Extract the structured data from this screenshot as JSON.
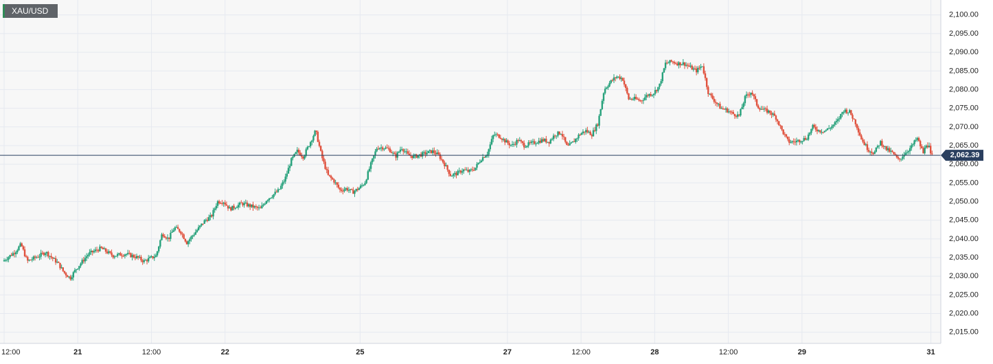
{
  "symbol": "XAU/USD",
  "last_price_label": "2,062.39",
  "colors": {
    "up": "#26a17b",
    "down": "#e0513d",
    "price_line": "#2a3f5f",
    "grid": "#e6e9f0",
    "plot_bg": "#f7f7f7",
    "axis_text": "#222222"
  },
  "chart_data": {
    "type": "candlestick",
    "title": "",
    "xlabel": "",
    "ylabel": "",
    "ylim": [
      2012,
      2104
    ],
    "y_ticks": [
      "2,015.00",
      "2,020.00",
      "2,025.00",
      "2,030.00",
      "2,035.00",
      "2,040.00",
      "2,045.00",
      "2,050.00",
      "2,055.00",
      "2,060.00",
      "2,065.00",
      "2,070.00",
      "2,075.00",
      "2,080.00",
      "2,085.00",
      "2,090.00",
      "2,095.00",
      "2,100.00"
    ],
    "x_ticks": [
      {
        "label": "12:00",
        "t": 0,
        "bold": false
      },
      {
        "label": "21",
        "t": 12,
        "bold": true
      },
      {
        "label": "12:00",
        "t": 24,
        "bold": false
      },
      {
        "label": "22",
        "t": 36,
        "bold": true
      },
      {
        "label": "25",
        "t": 58,
        "bold": true
      },
      {
        "label": "27",
        "t": 82,
        "bold": true
      },
      {
        "label": "12:00",
        "t": 94,
        "bold": false
      },
      {
        "label": "28",
        "t": 106,
        "bold": true
      },
      {
        "label": "12:00",
        "t": 118,
        "bold": false
      },
      {
        "label": "29",
        "t": 130,
        "bold": true
      },
      {
        "label": "31",
        "t": 151,
        "bold": true
      }
    ],
    "x_range": [
      0,
      151.5
    ],
    "last_price": 2062.39,
    "price_path": [
      [
        0,
        2034.0
      ],
      [
        2,
        2036.5
      ],
      [
        3,
        2038.5
      ],
      [
        4,
        2034.0
      ],
      [
        6,
        2035.5
      ],
      [
        7,
        2036.5
      ],
      [
        8,
        2035.0
      ],
      [
        9,
        2033.5
      ],
      [
        10,
        2031.0
      ],
      [
        11,
        2029.5
      ],
      [
        12,
        2032.0
      ],
      [
        13,
        2034.0
      ],
      [
        14,
        2036.0
      ],
      [
        16,
        2037.5
      ],
      [
        18,
        2035.5
      ],
      [
        20,
        2036.0
      ],
      [
        22,
        2035.0
      ],
      [
        23,
        2034.0
      ],
      [
        25,
        2035.5
      ],
      [
        26,
        2041.5
      ],
      [
        27,
        2040.0
      ],
      [
        28,
        2043.0
      ],
      [
        29,
        2042.0
      ],
      [
        30,
        2039.0
      ],
      [
        32,
        2043.0
      ],
      [
        33,
        2045.0
      ],
      [
        34,
        2046.0
      ],
      [
        35,
        2050.0
      ],
      [
        36,
        2050.0
      ],
      [
        37,
        2048.0
      ],
      [
        39,
        2049.5
      ],
      [
        41,
        2048.5
      ],
      [
        42,
        2048.0
      ],
      [
        43,
        2050.5
      ],
      [
        45,
        2053.0
      ],
      [
        46,
        2056.0
      ],
      [
        47,
        2061.0
      ],
      [
        48,
        2063.5
      ],
      [
        49,
        2062.0
      ],
      [
        50,
        2065.5
      ],
      [
        51,
        2069.0
      ],
      [
        52,
        2062.0
      ],
      [
        53,
        2057.0
      ],
      [
        54,
        2055.5
      ],
      [
        55,
        2053.0
      ],
      [
        56,
        2053.5
      ],
      [
        57,
        2052.5
      ],
      [
        58,
        2053.5
      ],
      [
        59,
        2055.0
      ],
      [
        60,
        2060.0
      ],
      [
        61,
        2064.5
      ],
      [
        62,
        2064.5
      ],
      [
        63,
        2064.0
      ],
      [
        64,
        2062.0
      ],
      [
        65,
        2064.5
      ],
      [
        66,
        2062.5
      ],
      [
        67,
        2062.0
      ],
      [
        68,
        2062.5
      ],
      [
        69,
        2063.0
      ],
      [
        70,
        2063.5
      ],
      [
        71,
        2062.5
      ],
      [
        72,
        2060.0
      ],
      [
        73,
        2057.0
      ],
      [
        74,
        2057.5
      ],
      [
        75,
        2058.5
      ],
      [
        76,
        2058.0
      ],
      [
        77,
        2059.0
      ],
      [
        78,
        2061.5
      ],
      [
        79,
        2063.0
      ],
      [
        80,
        2068.0
      ],
      [
        81,
        2067.5
      ],
      [
        82,
        2066.0
      ],
      [
        83,
        2065.0
      ],
      [
        84,
        2066.5
      ],
      [
        85,
        2065.0
      ],
      [
        86,
        2065.5
      ],
      [
        87,
        2066.0
      ],
      [
        88,
        2066.5
      ],
      [
        89,
        2066.0
      ],
      [
        90,
        2068.0
      ],
      [
        91,
        2068.5
      ],
      [
        92,
        2064.5
      ],
      [
        93,
        2066.0
      ],
      [
        94,
        2068.0
      ],
      [
        95,
        2069.0
      ],
      [
        96,
        2068.0
      ],
      [
        97,
        2071.0
      ],
      [
        98,
        2080.0
      ],
      [
        99,
        2082.0
      ],
      [
        100,
        2083.5
      ],
      [
        101,
        2083.0
      ],
      [
        102,
        2077.5
      ],
      [
        103,
        2077.5
      ],
      [
        104,
        2077.0
      ],
      [
        105,
        2078.5
      ],
      [
        106,
        2079.0
      ],
      [
        107,
        2081.0
      ],
      [
        108,
        2087.0
      ],
      [
        109,
        2087.5
      ],
      [
        110,
        2087.0
      ],
      [
        111,
        2087.0
      ],
      [
        112,
        2086.0
      ],
      [
        113,
        2085.0
      ],
      [
        114,
        2086.5
      ],
      [
        115,
        2079.0
      ],
      [
        116,
        2077.0
      ],
      [
        117,
        2075.0
      ],
      [
        118,
        2074.5
      ],
      [
        119,
        2073.5
      ],
      [
        120,
        2073.0
      ],
      [
        121,
        2078.0
      ],
      [
        122,
        2079.5
      ],
      [
        123,
        2075.5
      ],
      [
        124,
        2074.5
      ],
      [
        125,
        2074.0
      ],
      [
        126,
        2072.5
      ],
      [
        127,
        2069.0
      ],
      [
        128,
        2066.0
      ],
      [
        129,
        2066.0
      ],
      [
        130,
        2066.5
      ],
      [
        131,
        2067.0
      ],
      [
        132,
        2070.0
      ],
      [
        133,
        2069.0
      ],
      [
        134,
        2069.0
      ],
      [
        135,
        2070.0
      ],
      [
        136,
        2071.5
      ],
      [
        137,
        2074.5
      ],
      [
        138,
        2074.0
      ],
      [
        139,
        2071.0
      ],
      [
        140,
        2066.5
      ],
      [
        141,
        2064.0
      ],
      [
        142,
        2063.0
      ],
      [
        143,
        2066.0
      ],
      [
        144,
        2064.0
      ],
      [
        145,
        2063.0
      ],
      [
        146,
        2061.0
      ],
      [
        147,
        2063.0
      ],
      [
        148,
        2064.5
      ],
      [
        149,
        2067.0
      ],
      [
        150,
        2063.0
      ],
      [
        150.5,
        2065.5
      ],
      [
        151,
        2064.5
      ],
      [
        151.2,
        2062.39
      ]
    ]
  }
}
